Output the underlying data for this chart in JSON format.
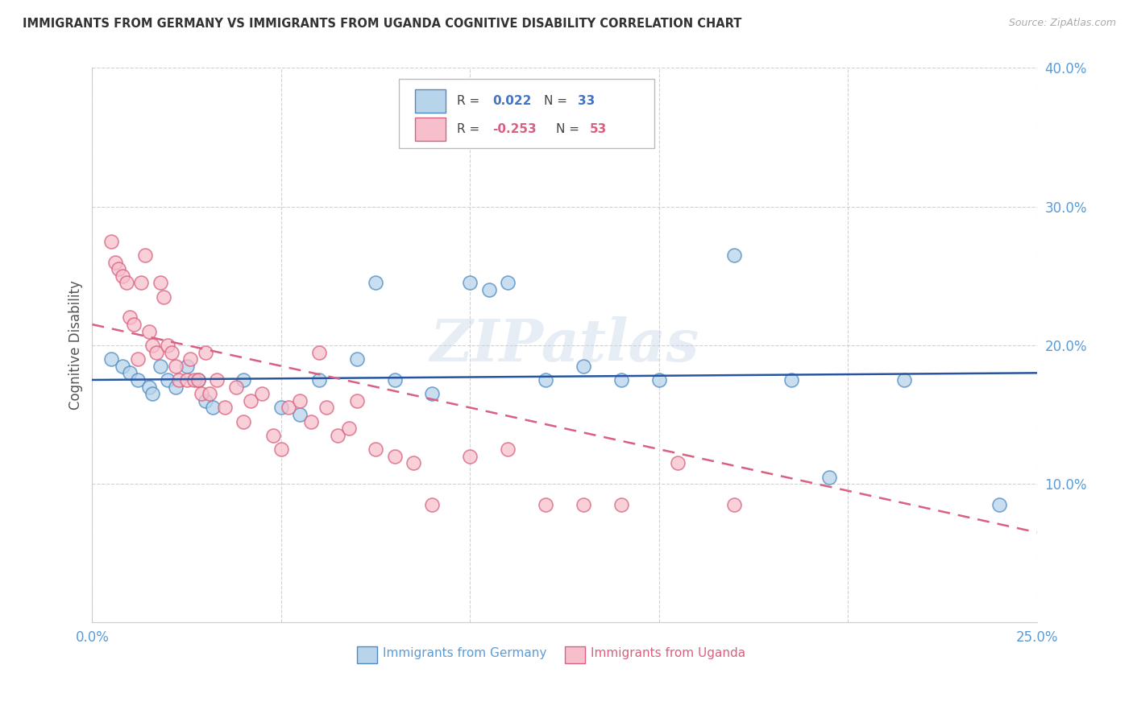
{
  "title": "IMMIGRANTS FROM GERMANY VS IMMIGRANTS FROM UGANDA COGNITIVE DISABILITY CORRELATION CHART",
  "source": "Source: ZipAtlas.com",
  "ylabel": "Cognitive Disability",
  "xlim": [
    0.0,
    0.25
  ],
  "ylim": [
    0.0,
    0.4
  ],
  "xticks": [
    0.0,
    0.05,
    0.1,
    0.15,
    0.2,
    0.25
  ],
  "yticks": [
    0.1,
    0.2,
    0.3,
    0.4
  ],
  "xticklabels": [
    "0.0%",
    "",
    "",
    "",
    "",
    "25.0%"
  ],
  "yticklabels": [
    "10.0%",
    "20.0%",
    "30.0%",
    "40.0%"
  ],
  "germany_color": "#b8d4ea",
  "uganda_color": "#f7bfcc",
  "germany_edge_color": "#4e8bc4",
  "uganda_edge_color": "#d96080",
  "trendline_germany_color": "#2855a0",
  "trendline_uganda_color": "#d96080",
  "watermark": "ZIPatlas",
  "germany_x": [
    0.005,
    0.008,
    0.01,
    0.012,
    0.015,
    0.016,
    0.018,
    0.02,
    0.022,
    0.025,
    0.028,
    0.03,
    0.032,
    0.04,
    0.05,
    0.055,
    0.06,
    0.07,
    0.075,
    0.08,
    0.09,
    0.1,
    0.105,
    0.11,
    0.12,
    0.13,
    0.14,
    0.15,
    0.17,
    0.185,
    0.195,
    0.215,
    0.24
  ],
  "germany_y": [
    0.19,
    0.185,
    0.18,
    0.175,
    0.17,
    0.165,
    0.185,
    0.175,
    0.17,
    0.185,
    0.175,
    0.16,
    0.155,
    0.175,
    0.155,
    0.15,
    0.175,
    0.19,
    0.245,
    0.175,
    0.165,
    0.245,
    0.24,
    0.245,
    0.175,
    0.185,
    0.175,
    0.175,
    0.265,
    0.175,
    0.105,
    0.175,
    0.085
  ],
  "uganda_x": [
    0.005,
    0.006,
    0.007,
    0.008,
    0.009,
    0.01,
    0.011,
    0.012,
    0.013,
    0.014,
    0.015,
    0.016,
    0.017,
    0.018,
    0.019,
    0.02,
    0.021,
    0.022,
    0.023,
    0.025,
    0.026,
    0.027,
    0.028,
    0.029,
    0.03,
    0.031,
    0.033,
    0.035,
    0.038,
    0.04,
    0.042,
    0.045,
    0.048,
    0.05,
    0.052,
    0.055,
    0.058,
    0.06,
    0.062,
    0.065,
    0.068,
    0.07,
    0.075,
    0.08,
    0.085,
    0.09,
    0.1,
    0.11,
    0.12,
    0.13,
    0.14,
    0.155,
    0.17
  ],
  "uganda_y": [
    0.275,
    0.26,
    0.255,
    0.25,
    0.245,
    0.22,
    0.215,
    0.19,
    0.245,
    0.265,
    0.21,
    0.2,
    0.195,
    0.245,
    0.235,
    0.2,
    0.195,
    0.185,
    0.175,
    0.175,
    0.19,
    0.175,
    0.175,
    0.165,
    0.195,
    0.165,
    0.175,
    0.155,
    0.17,
    0.145,
    0.16,
    0.165,
    0.135,
    0.125,
    0.155,
    0.16,
    0.145,
    0.195,
    0.155,
    0.135,
    0.14,
    0.16,
    0.125,
    0.12,
    0.115,
    0.085,
    0.12,
    0.125,
    0.085,
    0.085,
    0.085,
    0.115,
    0.085
  ],
  "legend_R_germany": "0.022",
  "legend_N_germany": "33",
  "legend_R_uganda": "-0.253",
  "legend_N_uganda": "53"
}
